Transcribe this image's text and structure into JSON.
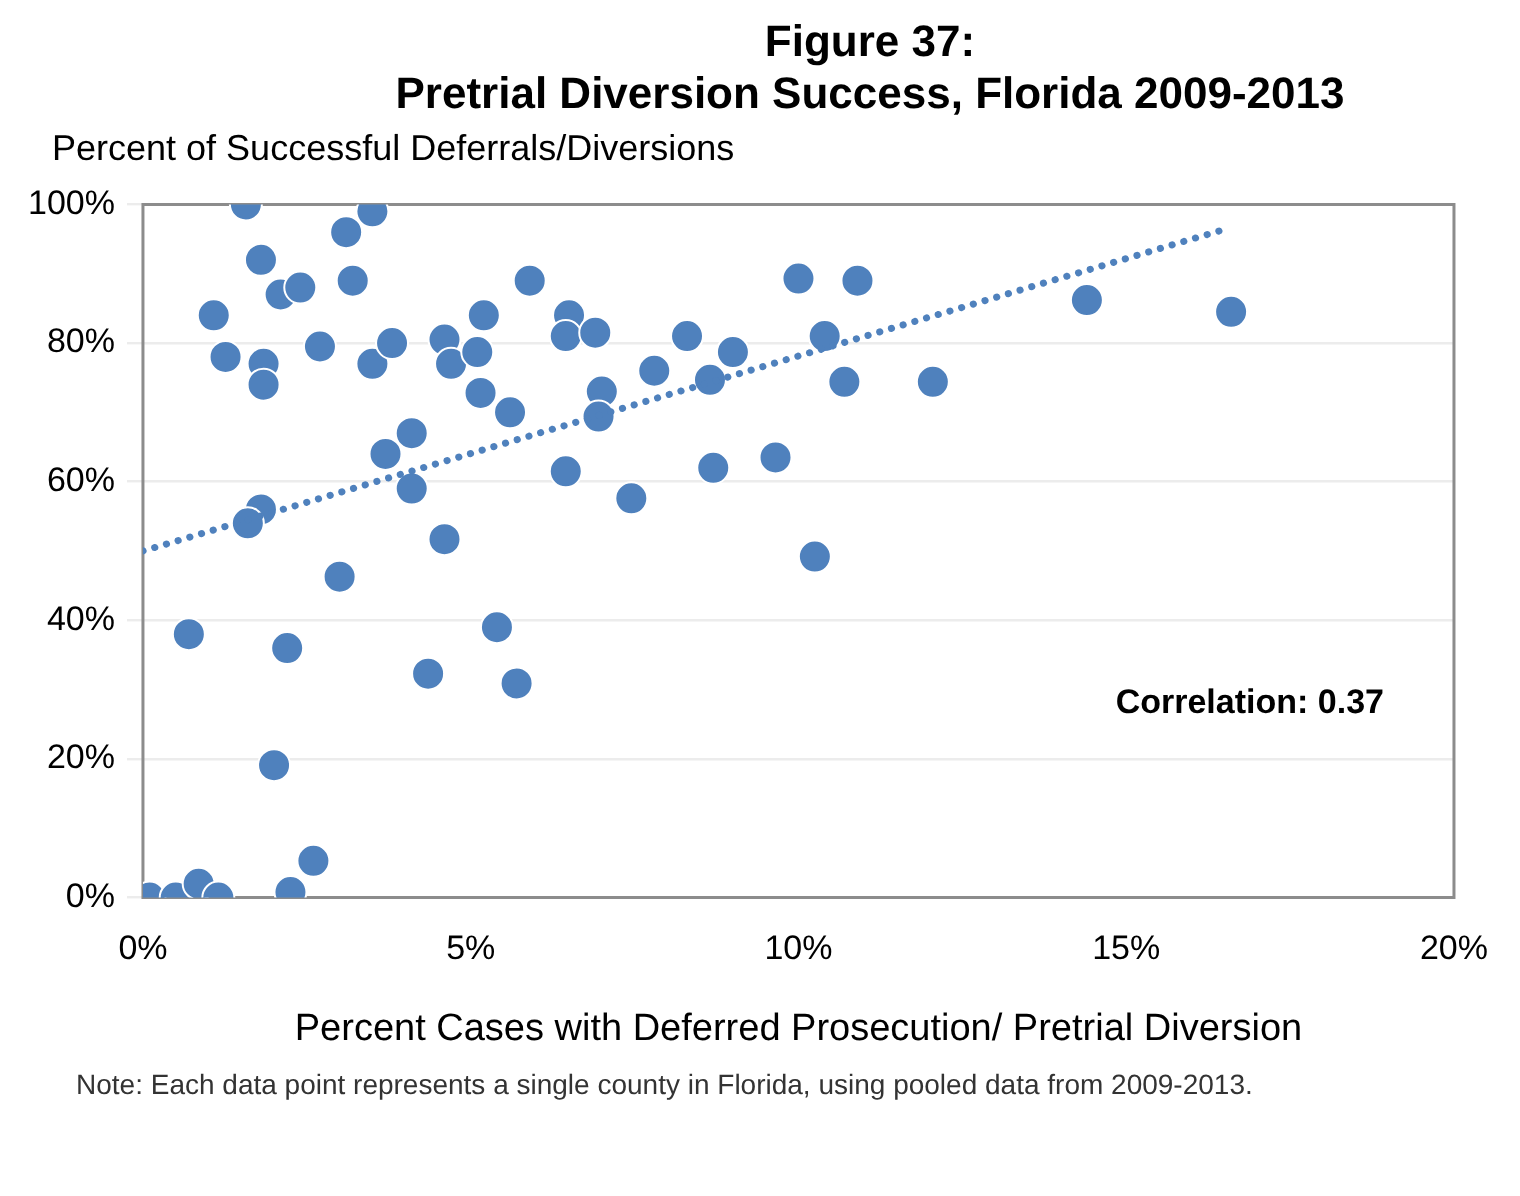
{
  "chart_data": {
    "type": "scatter",
    "title": "Figure 37:",
    "subtitle": "Pretrial Diversion Success, Florida 2009-2013",
    "xlabel": "Percent Cases with Deferred Prosecution/ Pretrial Diversion",
    "ylabel": "Percent of Successful Deferrals/Diversions",
    "annotations": [
      "Correlation: 0.37",
      "Note: Each data point represents a single county in Florida, using pooled data from 2009-2013."
    ],
    "series": [
      {
        "color": "#4f81bd",
        "marker": "circle",
        "x": [
          1.57,
          1.8,
          1.08,
          1.26,
          1.84,
          1.84,
          2.1,
          2.4,
          2.7,
          3.1,
          3.5,
          3.2,
          3.5,
          3.8,
          3.7,
          4.1,
          4.1,
          1.8,
          1.6,
          4.6,
          4.7,
          5.2,
          5.1,
          5.15,
          5.6,
          5.9,
          6.5,
          6.45,
          6.9,
          7.0,
          6.95,
          6.45,
          4.6,
          3.0,
          0.7,
          2.2,
          4.35,
          5.4,
          5.7,
          2.0,
          2.6,
          2.25,
          0.1,
          0.5,
          0.85,
          1.15,
          7.45,
          7.8,
          8.3,
          8.65,
          9.0,
          8.7,
          9.65,
          10.0,
          10.9,
          10.4,
          10.7,
          10.25,
          12.05,
          14.4,
          16.6
        ],
        "values": [
          100,
          92,
          84,
          78,
          77,
          74,
          87,
          88,
          79.5,
          96,
          99,
          89,
          77,
          80,
          64,
          67,
          59,
          56,
          54,
          80.5,
          77,
          84,
          78.7,
          72.8,
          70,
          89,
          84,
          81,
          81.5,
          73,
          69.4,
          61.5,
          51.7,
          46.3,
          38,
          36,
          32.3,
          39,
          30.9,
          19.1,
          5.3,
          0.8,
          0,
          0,
          2,
          0,
          57.6,
          76,
          81,
          74.7,
          78.7,
          62,
          63.5,
          89.3,
          89,
          81,
          74.4,
          49.2,
          74.4,
          86.2,
          84.5
        ]
      },
      {
        "type": "line",
        "color": "#4f81bd",
        "line_style": "dotted",
        "marker": "none",
        "x": [
          0,
          16.5
        ],
        "values": [
          50,
          96.4
        ]
      }
    ],
    "xlim": [
      0,
      20
    ],
    "xticks": [
      {
        "value": 0,
        "label": "0%"
      },
      {
        "value": 5,
        "label": "5%"
      },
      {
        "value": 10,
        "label": "10%"
      },
      {
        "value": 15,
        "label": "15%"
      },
      {
        "value": 20,
        "label": "20%"
      }
    ],
    "ylim": [
      0,
      100
    ],
    "yticks": [
      {
        "value": 0,
        "label": "0%"
      },
      {
        "value": 20,
        "label": "20%"
      },
      {
        "value": 40,
        "label": "40%"
      },
      {
        "value": 60,
        "label": "60%"
      },
      {
        "value": 80,
        "label": "80%"
      },
      {
        "value": 100,
        "label": "100%"
      }
    ],
    "grid": "y",
    "legend": false
  }
}
